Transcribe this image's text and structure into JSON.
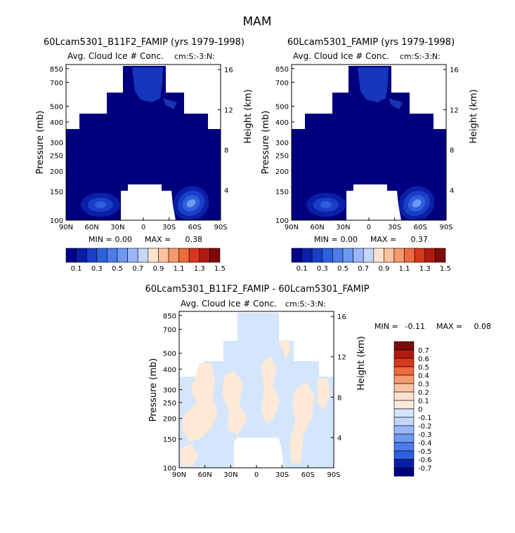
{
  "page_title": "MAM",
  "colors": {
    "dark_blue": "#00007f",
    "blue_levels": [
      "#00008f",
      "#0a1fa8",
      "#1a3fc6",
      "#2e5fdc",
      "#4c7ce9",
      "#6f98f1",
      "#9bb6f6",
      "#c4d6fa"
    ],
    "warm_levels": [
      "#fde3cf",
      "#fbc2a0",
      "#f59a6e",
      "#ed6a3e",
      "#d8381f",
      "#b01a10",
      "#7f0a0a"
    ],
    "pale_blue": "#d4e6fb",
    "pale_peach": "#fde9d6"
  },
  "chart_data": [
    {
      "type": "contour",
      "id": "panel1",
      "title": "60Lcam5301_B11F2_FAMIP (yrs 1979-1998)",
      "subtitle": "Avg. Cloud Ice # Conc.",
      "units": "cm:S:-3:N:",
      "ylabel": "Pressure (mb)",
      "y2label": "Height (km)",
      "x_ticks": [
        "90N",
        "60N",
        "30N",
        "0",
        "30S",
        "60S",
        "90S"
      ],
      "y_ticks": [
        "100",
        "150",
        "200",
        "250",
        "300",
        "400",
        "500",
        "700",
        "850"
      ],
      "y2_ticks": [
        "16",
        "12",
        "8",
        "4"
      ],
      "stats": {
        "min_label": "MIN =",
        "min": "0.00",
        "max_label": "MAX =",
        "max": "0.38"
      },
      "colorbar_labels": [
        "0.1",
        "0.3",
        "0.5",
        "0.7",
        "0.9",
        "1.1",
        "1.3",
        "1.5"
      ]
    },
    {
      "type": "contour",
      "id": "panel2",
      "title": "60Lcam5301_FAMIP (yrs 1979-1998)",
      "subtitle": "Avg. Cloud Ice # Conc.",
      "units": "cm:S:-3:N:",
      "ylabel": "Pressure (mb)",
      "y2label": "Height (km)",
      "x_ticks": [
        "90N",
        "60N",
        "30N",
        "0",
        "30S",
        "60S",
        "90S"
      ],
      "y_ticks": [
        "100",
        "150",
        "200",
        "250",
        "300",
        "400",
        "500",
        "700",
        "850"
      ],
      "y2_ticks": [
        "16",
        "12",
        "8",
        "4"
      ],
      "stats": {
        "min_label": "MIN =",
        "min": "0.00",
        "max_label": "MAX =",
        "max": "0.37"
      },
      "colorbar_labels": [
        "0.1",
        "0.3",
        "0.5",
        "0.7",
        "0.9",
        "1.1",
        "1.3",
        "1.5"
      ]
    },
    {
      "type": "contour",
      "id": "panel3",
      "title": "60Lcam5301_B11F2_FAMIP - 60Lcam5301_FAMIP",
      "subtitle": "Avg. Cloud Ice # Conc.",
      "units": "cm:S:-3:N:",
      "ylabel": "Pressure (mb)",
      "y2label": "Height (km)",
      "x_ticks": [
        "90N",
        "60N",
        "30N",
        "0",
        "30S",
        "60S",
        "90S"
      ],
      "y_ticks": [
        "100",
        "150",
        "200",
        "250",
        "300",
        "400",
        "500",
        "700",
        "850"
      ],
      "y2_ticks": [
        "16",
        "12",
        "8",
        "4"
      ],
      "stats": {
        "min_label": "MIN =",
        "min": "-0.11",
        "max_label": "MAX =",
        "max": "0.08"
      },
      "colorbar_labels": [
        "0.7",
        "0.6",
        "0.5",
        "0.4",
        "0.3",
        "0.2",
        "0.1",
        "0",
        "-0.1",
        "-0.2",
        "-0.3",
        "-0.4",
        "-0.5",
        "-0.6",
        "-0.7"
      ]
    }
  ]
}
